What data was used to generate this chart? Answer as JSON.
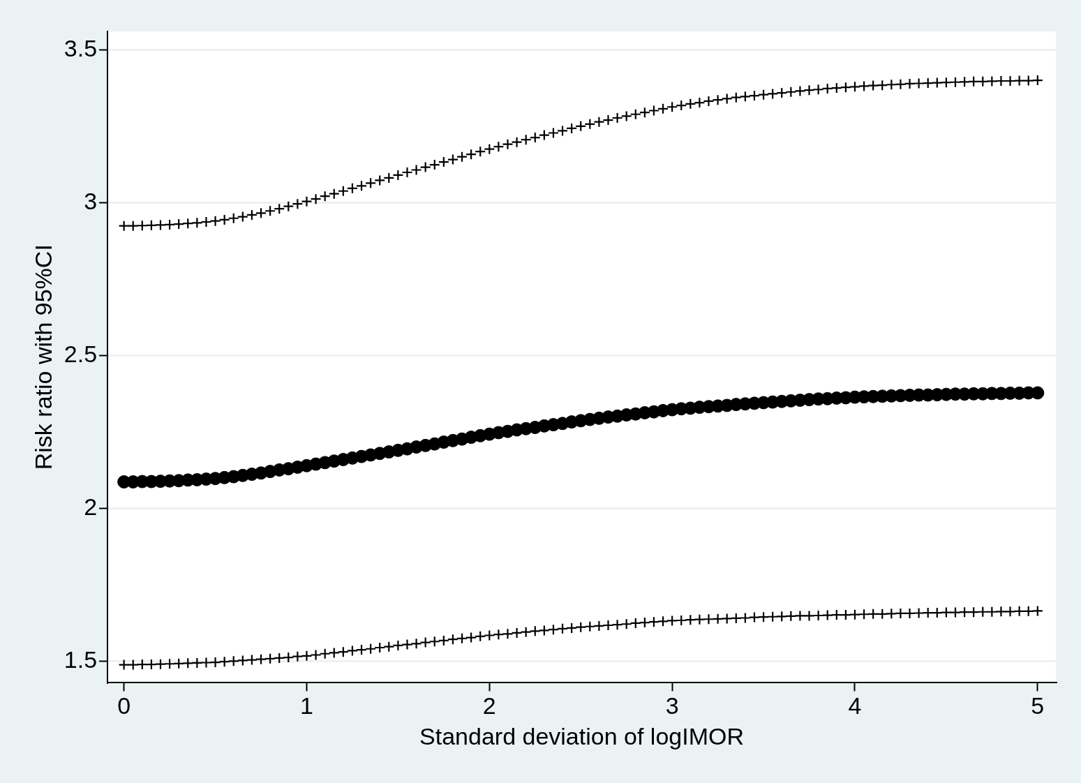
{
  "chart_data": {
    "type": "scatter",
    "xlabel": "Standard deviation of logIMOR",
    "ylabel": "Risk ratio with 95%CI",
    "xlim": [
      -0.09,
      5.1
    ],
    "ylim": [
      1.43,
      3.56
    ],
    "xticks": [
      0,
      1,
      2,
      3,
      4,
      5
    ],
    "yticks": [
      1.5,
      2,
      2.5,
      3,
      3.5
    ],
    "grid": "y",
    "legend": false,
    "x": [
      0,
      0.05,
      0.1,
      0.15,
      0.2,
      0.25,
      0.3,
      0.35,
      0.4,
      0.45,
      0.5,
      0.55,
      0.6,
      0.65,
      0.7,
      0.75,
      0.8,
      0.85,
      0.9,
      0.95,
      1,
      1.05,
      1.1,
      1.15,
      1.2,
      1.25,
      1.3,
      1.35,
      1.4,
      1.45,
      1.5,
      1.55,
      1.6,
      1.65,
      1.7,
      1.75,
      1.8,
      1.85,
      1.9,
      1.95,
      2,
      2.05,
      2.1,
      2.15,
      2.2,
      2.25,
      2.3,
      2.35,
      2.4,
      2.45,
      2.5,
      2.55,
      2.6,
      2.65,
      2.7,
      2.75,
      2.8,
      2.85,
      2.9,
      2.95,
      3,
      3.05,
      3.1,
      3.15,
      3.2,
      3.25,
      3.3,
      3.35,
      3.4,
      3.45,
      3.5,
      3.55,
      3.6,
      3.65,
      3.7,
      3.75,
      3.8,
      3.85,
      3.9,
      3.95,
      4,
      4.05,
      4.1,
      4.15,
      4.2,
      4.25,
      4.3,
      4.35,
      4.4,
      4.45,
      4.5,
      4.55,
      4.6,
      4.65,
      4.7,
      4.75,
      4.8,
      4.85,
      4.9,
      4.95,
      5
    ],
    "series": [
      {
        "color": "#000000",
        "marker": "cross",
        "values": [
          2.924,
          2.924,
          2.925,
          2.926,
          2.927,
          2.928,
          2.93,
          2.932,
          2.934,
          2.937,
          2.94,
          2.944,
          2.949,
          2.954,
          2.96,
          2.966,
          2.973,
          2.98,
          2.988,
          2.996,
          3.004,
          3.012,
          3.021,
          3.029,
          3.038,
          3.047,
          3.055,
          3.064,
          3.073,
          3.081,
          3.09,
          3.099,
          3.107,
          3.116,
          3.124,
          3.133,
          3.141,
          3.15,
          3.158,
          3.167,
          3.175,
          3.183,
          3.191,
          3.198,
          3.206,
          3.213,
          3.221,
          3.228,
          3.235,
          3.243,
          3.25,
          3.257,
          3.264,
          3.27,
          3.277,
          3.283,
          3.289,
          3.295,
          3.301,
          3.307,
          3.313,
          3.318,
          3.323,
          3.327,
          3.332,
          3.336,
          3.34,
          3.344,
          3.347,
          3.35,
          3.353,
          3.356,
          3.359,
          3.362,
          3.365,
          3.368,
          3.37,
          3.373,
          3.375,
          3.377,
          3.379,
          3.381,
          3.383,
          3.384,
          3.386,
          3.387,
          3.389,
          3.39,
          3.391,
          3.392,
          3.393,
          3.394,
          3.395,
          3.396,
          3.396,
          3.397,
          3.398,
          3.398,
          3.399,
          3.399,
          3.4
        ]
      },
      {
        "color": "#000000",
        "marker": "circle",
        "values": [
          2.087,
          2.087,
          2.088,
          2.088,
          2.089,
          2.09,
          2.091,
          2.093,
          2.094,
          2.096,
          2.098,
          2.101,
          2.104,
          2.108,
          2.112,
          2.116,
          2.121,
          2.126,
          2.13,
          2.135,
          2.14,
          2.145,
          2.15,
          2.155,
          2.16,
          2.165,
          2.17,
          2.175,
          2.18,
          2.185,
          2.19,
          2.195,
          2.201,
          2.206,
          2.211,
          2.217,
          2.222,
          2.227,
          2.233,
          2.238,
          2.243,
          2.248,
          2.252,
          2.257,
          2.261,
          2.265,
          2.27,
          2.274,
          2.278,
          2.283,
          2.287,
          2.291,
          2.295,
          2.299,
          2.302,
          2.306,
          2.309,
          2.313,
          2.316,
          2.32,
          2.323,
          2.326,
          2.328,
          2.331,
          2.333,
          2.335,
          2.337,
          2.34,
          2.342,
          2.344,
          2.346,
          2.348,
          2.35,
          2.352,
          2.354,
          2.356,
          2.358,
          2.359,
          2.361,
          2.362,
          2.364,
          2.365,
          2.366,
          2.367,
          2.368,
          2.369,
          2.37,
          2.371,
          2.371,
          2.372,
          2.373,
          2.374,
          2.374,
          2.375,
          2.375,
          2.376,
          2.376,
          2.377,
          2.377,
          2.378,
          2.378
        ]
      },
      {
        "color": "#000000",
        "marker": "cross",
        "values": [
          1.489,
          1.489,
          1.49,
          1.49,
          1.491,
          1.492,
          1.493,
          1.494,
          1.495,
          1.496,
          1.497,
          1.499,
          1.501,
          1.503,
          1.505,
          1.507,
          1.509,
          1.511,
          1.513,
          1.516,
          1.518,
          1.521,
          1.525,
          1.528,
          1.531,
          1.535,
          1.538,
          1.541,
          1.545,
          1.548,
          1.552,
          1.555,
          1.558,
          1.562,
          1.565,
          1.568,
          1.572,
          1.575,
          1.578,
          1.582,
          1.585,
          1.588,
          1.59,
          1.593,
          1.596,
          1.599,
          1.601,
          1.604,
          1.607,
          1.609,
          1.612,
          1.614,
          1.616,
          1.618,
          1.62,
          1.622,
          1.625,
          1.627,
          1.629,
          1.631,
          1.633,
          1.634,
          1.636,
          1.637,
          1.638,
          1.639,
          1.64,
          1.641,
          1.642,
          1.644,
          1.645,
          1.646,
          1.647,
          1.648,
          1.649,
          1.649,
          1.65,
          1.651,
          1.652,
          1.652,
          1.653,
          1.654,
          1.655,
          1.655,
          1.656,
          1.657,
          1.657,
          1.658,
          1.659,
          1.659,
          1.66,
          1.66,
          1.661,
          1.661,
          1.662,
          1.662,
          1.663,
          1.663,
          1.664,
          1.664,
          1.665
        ]
      }
    ]
  }
}
